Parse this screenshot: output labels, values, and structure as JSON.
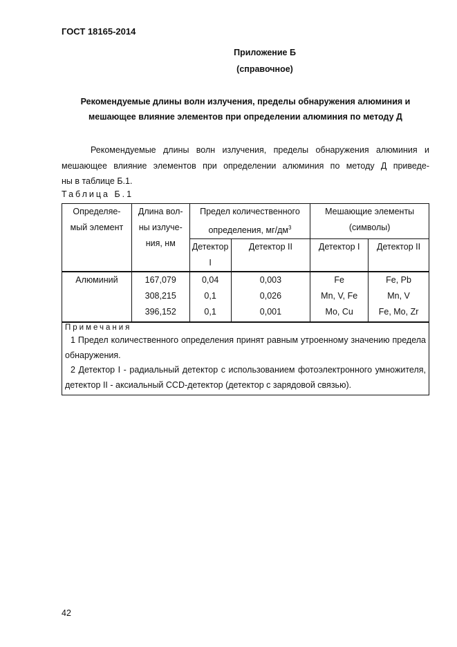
{
  "header": "ГОСТ 18165-2014",
  "appendix": {
    "title": "Приложение Б",
    "subtitle": "(справочное)"
  },
  "heading": [
    "Рекомендуемые длины волн излучения, пределы обнаружения алюминия и",
    "мешающее влияние элементов при определении алюминия по методу Д"
  ],
  "paragraph": [
    "Рекомендуемые длины волн излучения, пределы обнаружения алюминия и",
    "мешающее влияние элементов при определении алюминия по методу Д приведе-",
    "ны в таблице Б.1."
  ],
  "table_caption": "Таблица Б.1",
  "table": {
    "headers": {
      "element": [
        "Определяе-",
        "мый элемент"
      ],
      "wavelength": [
        "Длина вол-",
        "ны излуче-",
        "ния, нм"
      ],
      "limit": [
        "Предел количественного",
        "определения, мг/дм",
        "3"
      ],
      "interfering": [
        "Мешающие элементы",
        "(символы)"
      ],
      "detector1": "Детектор I",
      "detector2": "Детектор II"
    },
    "element": "Алюминий",
    "rows": [
      {
        "wavelength": "167,079",
        "limit1": "0,04",
        "limit2": "0,003",
        "inter1": "Fe",
        "inter2": "Fe, Pb"
      },
      {
        "wavelength": "308,215",
        "limit1": "0,1",
        "limit2": "0,026",
        "inter1": "Mn, V, Fe",
        "inter2": "Mn, V"
      },
      {
        "wavelength": "396,152",
        "limit1": "0,1",
        "limit2": "0,001",
        "inter1": "Mo, Cu",
        "inter2": "Fe, Mo, Zr"
      }
    ],
    "notes_title": "Примечания",
    "notes": [
      "1 Предел количественного определения принят равным утроенному значению предела",
      "обнаружения.",
      "2 Детектор I - радиальный детектор с использованием фотоэлектронного умножителя,",
      "детектор II - аксиальный CCD-детектор (детектор с зарядовой связью)."
    ]
  },
  "page_number": "42"
}
